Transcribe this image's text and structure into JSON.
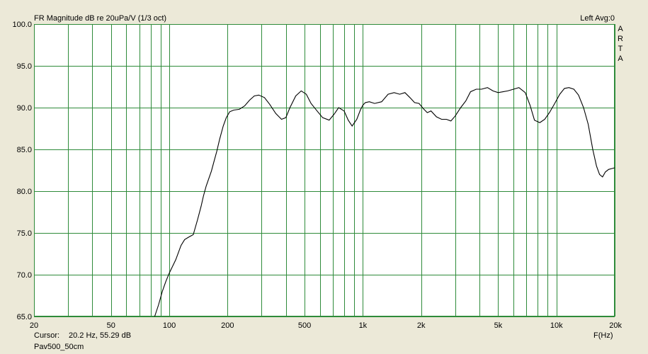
{
  "chart_data": {
    "type": "line",
    "title": "FR Magnitude dB re 20uPa/V (1/3 oct)",
    "top_right": "Left  Avg:0",
    "brand_letters": [
      "A",
      "R",
      "T",
      "A"
    ],
    "xlabel": "F(Hz)",
    "ylabel": "",
    "xscale": "log",
    "xlim": [
      20,
      20000
    ],
    "ylim": [
      65,
      100
    ],
    "x_ticks": [
      {
        "v": 20,
        "label": "20"
      },
      {
        "v": 50,
        "label": "50"
      },
      {
        "v": 100,
        "label": "100"
      },
      {
        "v": 200,
        "label": "200"
      },
      {
        "v": 500,
        "label": "500"
      },
      {
        "v": 1000,
        "label": "1k"
      },
      {
        "v": 2000,
        "label": "2k"
      },
      {
        "v": 5000,
        "label": "5k"
      },
      {
        "v": 10000,
        "label": "10k"
      },
      {
        "v": 20000,
        "label": "20k"
      }
    ],
    "y_ticks": [
      {
        "v": 100,
        "label": "100.0"
      },
      {
        "v": 95,
        "label": "95.0"
      },
      {
        "v": 90,
        "label": "90.0"
      },
      {
        "v": 85,
        "label": "85.0"
      },
      {
        "v": 80,
        "label": "80.0"
      },
      {
        "v": 75,
        "label": "75.0"
      },
      {
        "v": 70,
        "label": "70.0"
      },
      {
        "v": 65,
        "label": "65.0"
      }
    ],
    "grid": true,
    "colors": {
      "plot_bg": "#ffffff",
      "grid": "#2e8b3a",
      "line": "#000000",
      "panel_bg": "#ece9d8"
    },
    "series": [
      {
        "x": [
          84,
          88,
          92,
          96,
          100,
          108,
          115,
          120,
          126,
          133,
          140,
          146,
          150,
          155,
          160,
          165,
          170,
          176,
          182,
          190,
          197,
          205,
          215,
          230,
          245,
          260,
          275,
          290,
          310,
          330,
          355,
          380,
          400,
          420,
          450,
          480,
          510,
          540,
          580,
          620,
          670,
          710,
          750,
          800,
          840,
          880,
          930,
          970,
          1000,
          1030,
          1080,
          1150,
          1250,
          1350,
          1450,
          1550,
          1650,
          1750,
          1850,
          1950,
          2050,
          2150,
          2250,
          2400,
          2550,
          2700,
          2850,
          3000,
          3200,
          3400,
          3600,
          3850,
          4100,
          4400,
          4700,
          5000,
          5300,
          5600,
          6000,
          6400,
          6900,
          7300,
          7700,
          8200,
          8700,
          9200,
          9800,
          10400,
          11000,
          11600,
          12300,
          13000,
          13800,
          14600,
          15400,
          16100,
          16700,
          17300,
          17900,
          18600,
          19300,
          20000
        ],
        "y": [
          65.0,
          66.4,
          68.0,
          69.2,
          70.2,
          71.8,
          73.5,
          74.2,
          74.5,
          74.8,
          76.6,
          78.2,
          79.4,
          80.6,
          81.5,
          82.4,
          83.5,
          84.8,
          86.2,
          87.8,
          88.8,
          89.5,
          89.7,
          89.8,
          90.2,
          90.9,
          91.4,
          91.5,
          91.2,
          90.4,
          89.3,
          88.6,
          88.8,
          90.0,
          91.4,
          92.0,
          91.6,
          90.5,
          89.6,
          88.8,
          88.5,
          89.2,
          90.0,
          89.6,
          88.5,
          87.8,
          88.6,
          89.7,
          90.3,
          90.6,
          90.7,
          90.5,
          90.7,
          91.6,
          91.8,
          91.6,
          91.8,
          91.2,
          90.6,
          90.5,
          89.9,
          89.4,
          89.6,
          88.9,
          88.6,
          88.6,
          88.4,
          89.0,
          90.0,
          90.8,
          91.9,
          92.2,
          92.2,
          92.4,
          92.0,
          91.8,
          91.9,
          92.0,
          92.2,
          92.4,
          91.8,
          90.3,
          88.5,
          88.2,
          88.6,
          89.4,
          90.5,
          91.6,
          92.3,
          92.4,
          92.2,
          91.5,
          90.0,
          88.0,
          85.0,
          83.0,
          82.0,
          81.7,
          82.3,
          82.6,
          82.7,
          82.8
        ]
      }
    ]
  },
  "footer": {
    "cursor_label": "Cursor:",
    "cursor_value": "20.2 Hz, 55.29 dB",
    "file_name": "Pav500_50cm"
  }
}
